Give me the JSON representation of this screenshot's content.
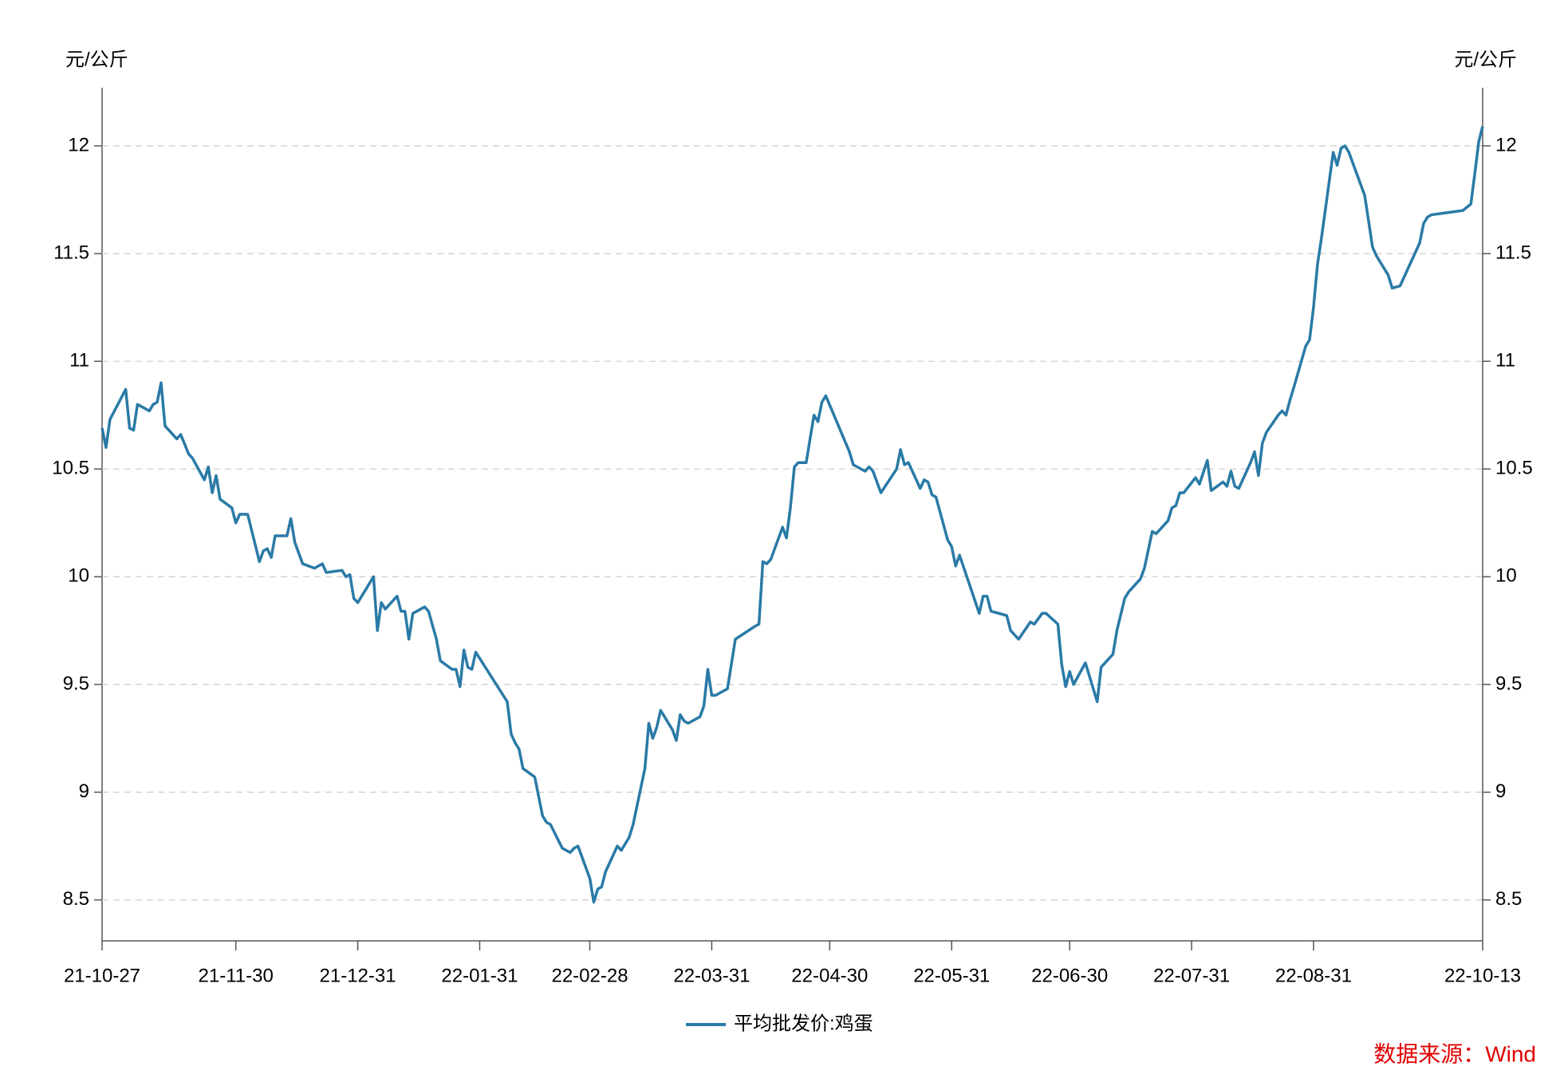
{
  "chart_data": {
    "type": "line",
    "y_label": "元/公斤",
    "y2_label": "元/公斤",
    "source": "数据来源：Wind",
    "grid": true,
    "legend": "bottom",
    "xlim": [
      "21-10-27",
      "22-10-13"
    ],
    "xticks": [
      "21-10-27",
      "21-11-30",
      "21-12-31",
      "22-01-31",
      "22-02-28",
      "22-03-31",
      "22-04-30",
      "22-05-31",
      "22-06-30",
      "22-07-31",
      "22-08-31",
      "22-10-13"
    ],
    "ylim": [
      8.31,
      12.27
    ],
    "yticks": [
      8.5,
      9,
      9.5,
      10,
      10.5,
      11,
      11.5,
      12
    ],
    "y2lim": [
      8.31,
      12.27
    ],
    "y2ticks": [
      8.5,
      9,
      9.5,
      10,
      10.5,
      11,
      11.5,
      12
    ],
    "x": [
      "21-10-27",
      "21-10-28",
      "21-10-29",
      "21-11-02",
      "21-11-03",
      "21-11-04",
      "21-11-05",
      "21-11-08",
      "21-11-09",
      "21-11-10",
      "21-11-11",
      "21-11-12",
      "21-11-15",
      "21-11-16",
      "21-11-18",
      "21-11-19",
      "21-11-22",
      "21-11-23",
      "21-11-24",
      "21-11-25",
      "21-11-26",
      "21-11-29",
      "21-11-30",
      "21-12-01",
      "21-12-03",
      "21-12-06",
      "21-12-07",
      "21-12-08",
      "21-12-09",
      "21-12-10",
      "21-12-13",
      "21-12-14",
      "21-12-15",
      "21-12-17",
      "21-12-20",
      "21-12-22",
      "21-12-23",
      "21-12-27",
      "21-12-28",
      "21-12-29",
      "21-12-30",
      "21-12-31",
      "22-01-04",
      "22-01-05",
      "22-01-06",
      "22-01-07",
      "22-01-10",
      "22-01-11",
      "22-01-12",
      "22-01-13",
      "22-01-14",
      "22-01-17",
      "22-01-18",
      "22-01-20",
      "22-01-21",
      "22-01-24",
      "22-01-25",
      "22-01-26",
      "22-01-27",
      "22-01-28",
      "22-01-29",
      "22-01-30",
      "22-02-07",
      "22-02-08",
      "22-02-09",
      "22-02-10",
      "22-02-11",
      "22-02-14",
      "22-02-16",
      "22-02-17",
      "22-02-18",
      "22-02-21",
      "22-02-22",
      "22-02-23",
      "22-02-24",
      "22-02-25",
      "22-02-28",
      "22-03-01",
      "22-03-02",
      "22-03-03",
      "22-03-04",
      "22-03-07",
      "22-03-08",
      "22-03-10",
      "22-03-11",
      "22-03-14",
      "22-03-15",
      "22-03-16",
      "22-03-17",
      "22-03-18",
      "22-03-21",
      "22-03-22",
      "22-03-23",
      "22-03-24",
      "22-03-25",
      "22-03-28",
      "22-03-29",
      "22-03-30",
      "22-03-31",
      "22-04-01",
      "22-04-04",
      "22-04-06",
      "22-04-11",
      "22-04-12",
      "22-04-13",
      "22-04-14",
      "22-04-15",
      "22-04-18",
      "22-04-19",
      "22-04-20",
      "22-04-21",
      "22-04-22",
      "22-04-24",
      "22-04-26",
      "22-04-27",
      "22-04-28",
      "22-04-29",
      "22-05-05",
      "22-05-06",
      "22-05-09",
      "22-05-10",
      "22-05-11",
      "22-05-13",
      "22-05-17",
      "22-05-18",
      "22-05-19",
      "22-05-20",
      "22-05-23",
      "22-05-24",
      "22-05-25",
      "22-05-26",
      "22-05-27",
      "22-05-30",
      "22-05-31",
      "22-06-01",
      "22-06-02",
      "22-06-07",
      "22-06-08",
      "22-06-09",
      "22-06-10",
      "22-06-14",
      "22-06-15",
      "22-06-17",
      "22-06-20",
      "22-06-21",
      "22-06-23",
      "22-06-24",
      "22-06-27",
      "22-06-28",
      "22-06-29",
      "22-06-30",
      "22-07-01",
      "22-07-04",
      "22-07-06",
      "22-07-07",
      "22-07-08",
      "22-07-11",
      "22-07-12",
      "22-07-14",
      "22-07-15",
      "22-07-18",
      "22-07-19",
      "22-07-21",
      "22-07-22",
      "22-07-25",
      "22-07-26",
      "22-07-27",
      "22-07-28",
      "22-07-29",
      "22-08-01",
      "22-08-02",
      "22-08-04",
      "22-08-05",
      "22-08-08",
      "22-08-09",
      "22-08-10",
      "22-08-11",
      "22-08-12",
      "22-08-15",
      "22-08-16",
      "22-08-17",
      "22-08-18",
      "22-08-19",
      "22-08-22",
      "22-08-23",
      "22-08-24",
      "22-08-25",
      "22-08-26",
      "22-08-29",
      "22-08-30",
      "22-08-31",
      "22-09-01",
      "22-09-02",
      "22-09-05",
      "22-09-06",
      "22-09-07",
      "22-09-08",
      "22-09-09",
      "22-09-13",
      "22-09-15",
      "22-09-16",
      "22-09-19",
      "22-09-20",
      "22-09-22",
      "22-09-26",
      "22-09-27",
      "22-09-28",
      "22-09-29",
      "22-09-30",
      "22-10-08",
      "22-10-10",
      "22-10-11",
      "22-10-12",
      "22-10-13"
    ],
    "series": [
      {
        "name": "平均批发价:鸡蛋",
        "color": "#2a7aa6",
        "values": [
          10.69,
          10.6,
          10.73,
          10.87,
          10.69,
          10.68,
          10.8,
          10.77,
          10.8,
          10.81,
          10.9,
          10.7,
          10.64,
          10.66,
          10.57,
          10.55,
          10.45,
          10.51,
          10.39,
          10.47,
          10.36,
          10.32,
          10.25,
          10.29,
          10.29,
          10.07,
          10.12,
          10.13,
          10.09,
          10.19,
          10.19,
          10.27,
          10.16,
          10.06,
          10.04,
          10.06,
          10.02,
          10.03,
          10.0,
          10.01,
          9.9,
          9.88,
          10.0,
          9.75,
          9.88,
          9.85,
          9.91,
          9.84,
          9.84,
          9.71,
          9.83,
          9.86,
          9.84,
          9.71,
          9.61,
          9.57,
          9.57,
          9.49,
          9.66,
          9.58,
          9.57,
          9.65,
          9.42,
          9.27,
          9.23,
          9.2,
          9.11,
          9.07,
          8.89,
          8.86,
          8.85,
          8.74,
          8.73,
          8.72,
          8.74,
          8.75,
          8.6,
          8.49,
          8.55,
          8.56,
          8.63,
          8.75,
          8.73,
          8.79,
          8.85,
          9.11,
          9.32,
          9.25,
          9.3,
          9.38,
          9.29,
          9.24,
          9.36,
          9.33,
          9.32,
          9.35,
          9.4,
          9.57,
          9.45,
          9.45,
          9.48,
          9.71,
          9.77,
          9.78,
          10.07,
          10.06,
          10.08,
          10.23,
          10.18,
          10.32,
          10.51,
          10.53,
          10.53,
          10.75,
          10.72,
          10.81,
          10.84,
          10.58,
          10.52,
          10.49,
          10.51,
          10.49,
          10.39,
          10.5,
          10.59,
          10.52,
          10.53,
          10.41,
          10.45,
          10.44,
          10.38,
          10.37,
          10.17,
          10.14,
          10.05,
          10.1,
          9.83,
          9.91,
          9.91,
          9.84,
          9.82,
          9.75,
          9.71,
          9.79,
          9.78,
          9.83,
          9.83,
          9.78,
          9.59,
          9.49,
          9.56,
          9.5,
          9.6,
          9.48,
          9.42,
          9.58,
          9.64,
          9.75,
          9.9,
          9.93,
          9.99,
          10.04,
          10.21,
          10.2,
          10.26,
          10.32,
          10.33,
          10.39,
          10.39,
          10.46,
          10.43,
          10.54,
          10.4,
          10.44,
          10.42,
          10.49,
          10.42,
          10.41,
          10.53,
          10.58,
          10.47,
          10.62,
          10.67,
          10.75,
          10.77,
          10.75,
          10.82,
          10.88,
          11.07,
          11.1,
          11.25,
          11.45,
          11.57,
          11.97,
          11.91,
          11.99,
          12.0,
          11.97,
          11.77,
          11.53,
          11.49,
          11.4,
          11.34,
          11.35,
          11.51,
          11.55,
          11.64,
          11.67,
          11.68,
          11.7,
          11.73,
          11.87,
          12.02,
          12.09
        ]
      }
    ]
  }
}
